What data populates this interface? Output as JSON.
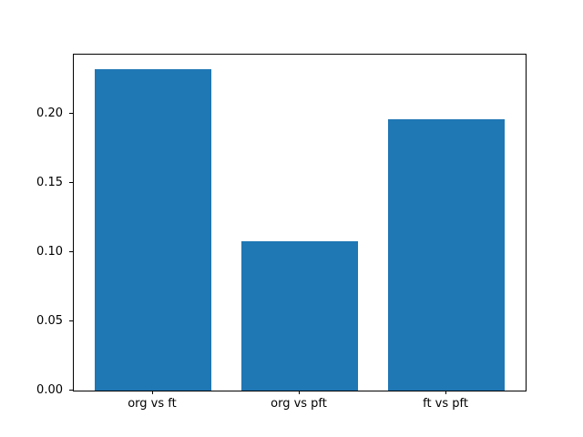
{
  "chart_data": {
    "type": "bar",
    "categories": [
      "org vs ft",
      "org vs pft",
      "ft vs pft"
    ],
    "values": [
      0.232,
      0.108,
      0.196
    ],
    "title": "",
    "xlabel": "",
    "ylabel": "",
    "ylim": [
      0,
      0.2425
    ],
    "xlim": [
      -0.54,
      2.54
    ],
    "bar_width": 0.8,
    "yticks": [
      0,
      0.05,
      0.1,
      0.15,
      0.2
    ],
    "ytick_labels": [
      "0.00",
      "0.05",
      "0.10",
      "0.15",
      "0.20"
    ],
    "bar_color": "#1f77b4",
    "spine_color": "#000000",
    "grid": false,
    "legend_position": null
  }
}
